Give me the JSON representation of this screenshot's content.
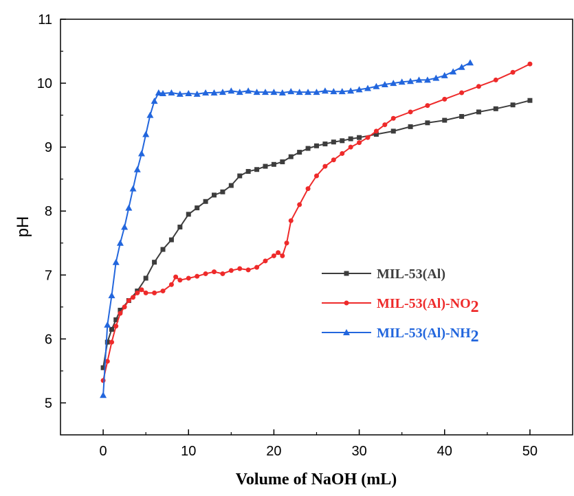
{
  "chart_data": {
    "type": "line",
    "title": "",
    "xlabel": "Volume of  NaOH (mL)",
    "ylabel": "pH",
    "xlim": [
      -5,
      55
    ],
    "ylim": [
      4.5,
      11
    ],
    "x_ticks": [
      0,
      10,
      20,
      30,
      40,
      50
    ],
    "y_ticks": [
      5,
      6,
      7,
      8,
      9,
      10,
      11
    ],
    "grid": false,
    "legend_position": "center-right",
    "series": [
      {
        "name": "MIL-53(Al)",
        "name_main": "MIL-53(Al)",
        "name_sub": "",
        "color": "#3d3d3d",
        "marker": "square",
        "x": [
          0,
          0.5,
          1,
          1.5,
          2,
          3,
          4,
          5,
          6,
          7,
          8,
          9,
          10,
          11,
          12,
          13,
          14,
          15,
          16,
          17,
          18,
          19,
          20,
          21,
          22,
          23,
          24,
          25,
          26,
          27,
          28,
          29,
          30,
          32,
          34,
          36,
          38,
          40,
          42,
          44,
          46,
          48,
          50
        ],
        "y": [
          5.55,
          5.95,
          6.15,
          6.3,
          6.45,
          6.6,
          6.75,
          6.95,
          7.2,
          7.4,
          7.55,
          7.75,
          7.95,
          8.05,
          8.15,
          8.25,
          8.3,
          8.4,
          8.55,
          8.62,
          8.65,
          8.7,
          8.73,
          8.77,
          8.85,
          8.92,
          8.98,
          9.02,
          9.05,
          9.08,
          9.1,
          9.13,
          9.15,
          9.2,
          9.25,
          9.32,
          9.38,
          9.42,
          9.48,
          9.55,
          9.6,
          9.66,
          9.73
        ]
      },
      {
        "name": "MIL-53(Al)-NO2",
        "name_main": "MIL-53(Al)-NO",
        "name_sub": "2",
        "color": "#ee2a2a",
        "marker": "circle",
        "x": [
          0,
          0.5,
          1,
          1.5,
          2,
          2.5,
          3,
          3.5,
          4,
          4.5,
          5,
          6,
          7,
          8,
          8.5,
          9,
          10,
          11,
          12,
          13,
          14,
          15,
          16,
          17,
          18,
          19,
          20,
          20.5,
          21,
          21.5,
          22,
          23,
          24,
          25,
          26,
          27,
          28,
          29,
          30,
          31,
          32,
          33,
          34,
          36,
          38,
          40,
          42,
          44,
          46,
          48,
          50
        ],
        "y": [
          5.35,
          5.65,
          5.95,
          6.2,
          6.4,
          6.5,
          6.6,
          6.65,
          6.72,
          6.77,
          6.72,
          6.72,
          6.75,
          6.85,
          6.97,
          6.92,
          6.95,
          6.98,
          7.02,
          7.05,
          7.02,
          7.07,
          7.1,
          7.08,
          7.12,
          7.22,
          7.3,
          7.35,
          7.3,
          7.5,
          7.85,
          8.1,
          8.35,
          8.55,
          8.7,
          8.8,
          8.9,
          9.0,
          9.07,
          9.15,
          9.25,
          9.35,
          9.45,
          9.55,
          9.65,
          9.75,
          9.85,
          9.95,
          10.05,
          10.17,
          10.3
        ]
      },
      {
        "name": "MIL-53(Al)-NH2",
        "name_main": "MIL-53(Al)-NH",
        "name_sub": "2",
        "color": "#2266dd",
        "marker": "triangle",
        "x": [
          0,
          0.5,
          1,
          1.5,
          2,
          2.5,
          3,
          3.5,
          4,
          4.5,
          5,
          5.5,
          6,
          6.5,
          7,
          8,
          9,
          10,
          11,
          12,
          13,
          14,
          15,
          16,
          17,
          18,
          19,
          20,
          21,
          22,
          23,
          24,
          25,
          26,
          27,
          28,
          29,
          30,
          31,
          32,
          33,
          34,
          35,
          36,
          37,
          38,
          39,
          40,
          41,
          42,
          43
        ],
        "y": [
          5.12,
          6.22,
          6.68,
          7.2,
          7.5,
          7.75,
          8.05,
          8.35,
          8.65,
          8.9,
          9.2,
          9.5,
          9.72,
          9.85,
          9.84,
          9.85,
          9.83,
          9.84,
          9.83,
          9.85,
          9.85,
          9.86,
          9.88,
          9.86,
          9.88,
          9.86,
          9.86,
          9.86,
          9.85,
          9.87,
          9.86,
          9.86,
          9.86,
          9.88,
          9.87,
          9.87,
          9.88,
          9.9,
          9.92,
          9.95,
          9.98,
          10.0,
          10.02,
          10.03,
          10.05,
          10.05,
          10.08,
          10.12,
          10.18,
          10.25,
          10.32
        ]
      }
    ]
  }
}
